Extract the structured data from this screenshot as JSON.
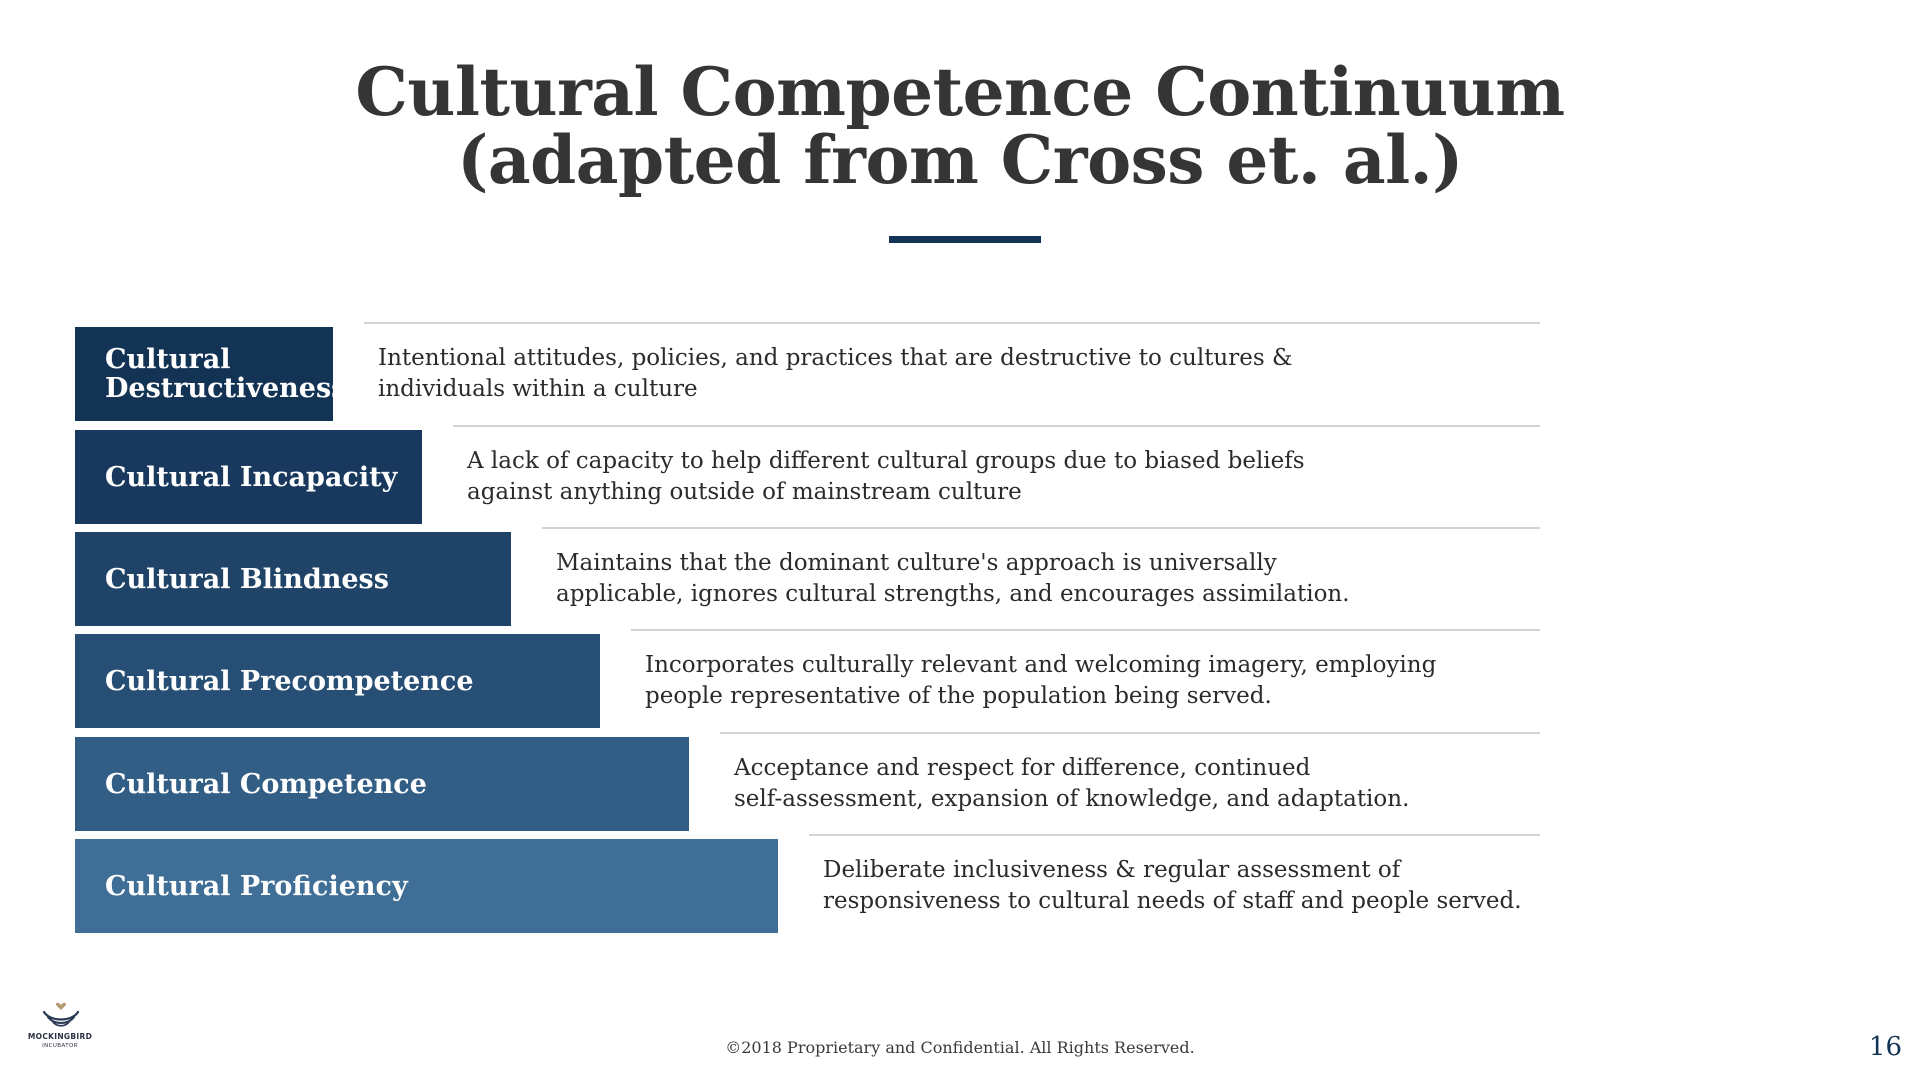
{
  "slide": {
    "title_lines": [
      "Cultural Competence Continuum",
      "(adapted from Cross et. al.)"
    ],
    "accent_color": "#133354",
    "steps": [
      {
        "label_lines": [
          "Cultural",
          "Destructiveness"
        ],
        "description_lines": [
          "Intentional attitudes, policies, and practices that are destructive to cultures &",
          "individuals within a culture"
        ],
        "color": "#133354"
      },
      {
        "label_lines": [
          "Cultural Incapacity"
        ],
        "description_lines": [
          "A lack of capacity to help different cultural groups due to biased beliefs",
          "against anything outside of mainstream culture"
        ],
        "color": "#18395d"
      },
      {
        "label_lines": [
          "Cultural Blindness"
        ],
        "description_lines": [
          "Maintains that the dominant culture's approach is universally",
          "applicable, ignores cultural strengths, and encourages assimilation."
        ],
        "color": "#1f4468"
      },
      {
        "label_lines": [
          "Cultural Precompetence"
        ],
        "description_lines": [
          "Incorporates culturally relevant and welcoming imagery, employing",
          "people representative of the population being served."
        ],
        "color": "#274e74"
      },
      {
        "label_lines": [
          "Cultural Competence"
        ],
        "description_lines": [
          "Acceptance and respect for difference, continued",
          "self-assessment, expansion of knowledge, and adaptation."
        ],
        "color": "#325e86"
      },
      {
        "label_lines": [
          "Cultural Proficiency"
        ],
        "description_lines": [
          "Deliberate inclusiveness & regular assessment of",
          "responsiveness to cultural needs of staff and people served."
        ],
        "color": "#3f6e97"
      }
    ]
  },
  "footer": {
    "copyright": "©2018 Proprietary and Confidential. All Rights Reserved.",
    "page_number": "16",
    "logo_text": "MOCKINGBIRD",
    "logo_subtext": "INCUBATOR"
  }
}
